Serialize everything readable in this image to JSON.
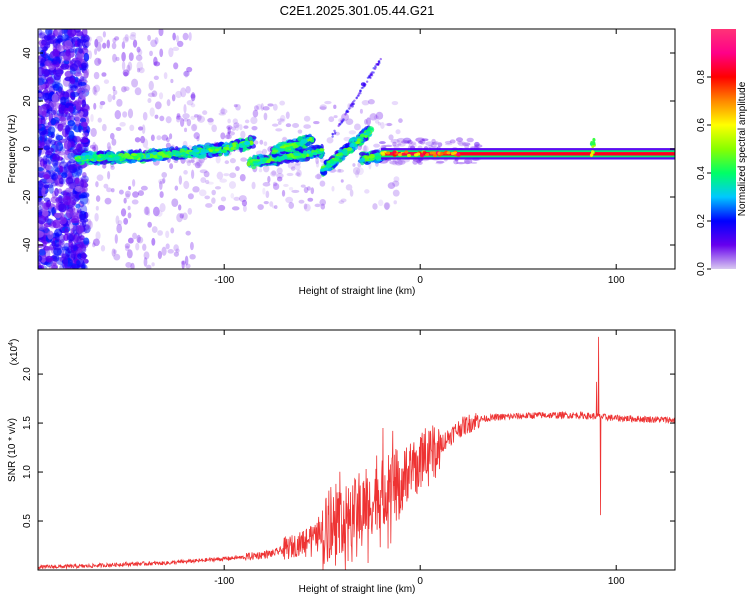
{
  "title": "C2E1.2025.301.05.44.G21",
  "chart_data": [
    {
      "type": "heatmap",
      "xlabel": "Height of straight line (km)",
      "ylabel": "Frequency (Hz)",
      "xlim": [
        -195,
        130
      ],
      "ylim": [
        -50,
        50
      ],
      "xticks": [
        {
          "v": -100,
          "t": "-100"
        },
        {
          "v": 0,
          "t": "0"
        },
        {
          "v": 100,
          "t": "100"
        }
      ],
      "yticks": [
        {
          "v": -40,
          "t": "-40"
        },
        {
          "v": -20,
          "t": "-20"
        },
        {
          "v": 0,
          "t": "0"
        },
        {
          "v": 20,
          "t": "20"
        },
        {
          "v": 40,
          "t": "40"
        }
      ],
      "colorbar": {
        "label": "Normalized spectral amplitude",
        "range": [
          0,
          1
        ],
        "ticks": [
          {
            "v": 0.0,
            "t": "0.0"
          },
          {
            "v": 0.2,
            "t": "0.2"
          },
          {
            "v": 0.4,
            "t": "0.4"
          },
          {
            "v": 0.6,
            "t": "0.6"
          },
          {
            "v": 0.8,
            "t": "0.8"
          }
        ],
        "colors": [
          "#d8c8f0",
          "#6600ee",
          "#0000ff",
          "#00c8ff",
          "#00ff66",
          "#88ff00",
          "#ffff00",
          "#ff8800",
          "#ff0000",
          "#ff0088",
          "#ff3377"
        ]
      },
      "features": {
        "signal_start_km": -175,
        "signal_segments": [
          {
            "x": [
              -175,
              -140
            ],
            "f": [
              -4,
              -3
            ]
          },
          {
            "x": [
              -140,
              -100
            ],
            "f": [
              -3,
              0
            ]
          },
          {
            "x": [
              -100,
              -85
            ],
            "f": [
              0,
              3
            ]
          },
          {
            "x": [
              -88,
              -50
            ],
            "f": [
              -6,
              -1
            ]
          },
          {
            "x": [
              -75,
              -55
            ],
            "f": [
              -1,
              4
            ]
          },
          {
            "x": [
              -50,
              -25
            ],
            "f": [
              -9,
              8
            ]
          },
          {
            "x": [
              -30,
              -15
            ],
            "f": [
              -4,
              -2
            ]
          }
        ],
        "carrier_line": {
          "x": [
            -20,
            130
          ],
          "f": -2
        },
        "spike_km": 88
      }
    },
    {
      "type": "line",
      "xlabel": "Height of straight line (km)",
      "ylabel": "SNR (10 * v/v)",
      "multiplier": "(x10",
      "multiplier_exp": "4",
      "xlim": [
        -195,
        130
      ],
      "ylim": [
        0,
        2.45
      ],
      "color": "#ee3333",
      "xticks": [
        {
          "v": -100,
          "t": "-100"
        },
        {
          "v": 0,
          "t": "0"
        },
        {
          "v": 100,
          "t": "100"
        }
      ],
      "yticks": [
        {
          "v": 0.5,
          "t": "0.5"
        },
        {
          "v": 1.0,
          "t": "1.0"
        },
        {
          "v": 1.5,
          "t": "1.5"
        },
        {
          "v": 2.0,
          "t": "2.0"
        }
      ],
      "envelope": [
        {
          "x": -195,
          "y": 0.03
        },
        {
          "x": -170,
          "y": 0.04
        },
        {
          "x": -150,
          "y": 0.06
        },
        {
          "x": -130,
          "y": 0.07
        },
        {
          "x": -110,
          "y": 0.1
        },
        {
          "x": -90,
          "y": 0.13
        },
        {
          "x": -75,
          "y": 0.17
        },
        {
          "x": -60,
          "y": 0.28
        },
        {
          "x": -50,
          "y": 0.4
        },
        {
          "x": -40,
          "y": 0.52
        },
        {
          "x": -30,
          "y": 0.62
        },
        {
          "x": -20,
          "y": 0.78
        },
        {
          "x": -10,
          "y": 0.92
        },
        {
          "x": 0,
          "y": 1.08
        },
        {
          "x": 10,
          "y": 1.28
        },
        {
          "x": 20,
          "y": 1.45
        },
        {
          "x": 30,
          "y": 1.54
        },
        {
          "x": 40,
          "y": 1.56
        },
        {
          "x": 60,
          "y": 1.58
        },
        {
          "x": 80,
          "y": 1.58
        },
        {
          "x": 88,
          "y": 1.57
        },
        {
          "x": 100,
          "y": 1.55
        },
        {
          "x": 130,
          "y": 1.53
        }
      ],
      "spikes": [
        {
          "x": -19,
          "y": 1.45
        },
        {
          "x": -14,
          "y": 1.42
        },
        {
          "x": -7,
          "y": 1.25
        },
        {
          "x": 91,
          "y": 2.38
        },
        {
          "x": 92,
          "y": 0.56
        },
        {
          "x": 90,
          "y": 1.92
        }
      ]
    }
  ]
}
